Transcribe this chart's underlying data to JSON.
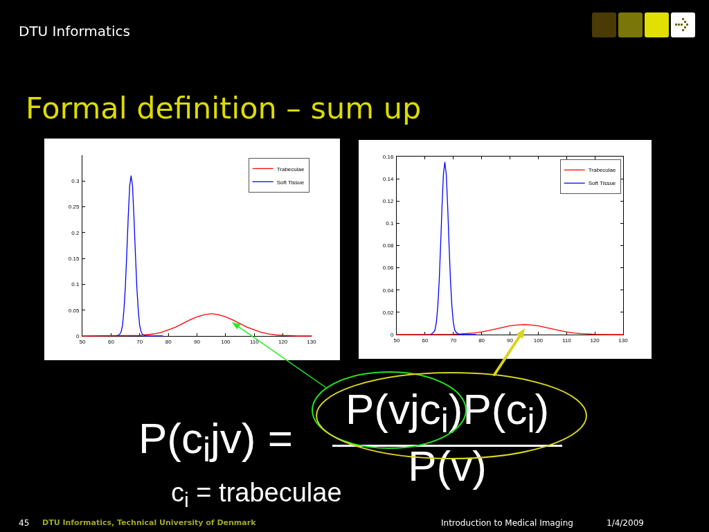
{
  "chart_data": [
    {
      "type": "other",
      "title": "Formal definition – sum up",
      "annotations": [
        "DTU Informatics",
        "P(c$_{i}$jv) =",
        "P(vjc$_{i}$)P(c$_{i}$)",
        "P(v)",
        "c$_{i}$ = trabeculae",
        "45",
        "DTU Informatics, Technical University of Denmark",
        "Introduction to Medical Imaging",
        "1/4/2009"
      ]
    },
    {
      "type": "line",
      "legend": "top right",
      "xlim": [
        50,
        130
      ],
      "xticks": [
        50,
        60,
        70,
        80,
        90,
        100,
        110,
        120,
        130
      ],
      "ylim": [
        0,
        0.35
      ],
      "yticks": [
        0,
        0.05,
        0.1,
        0.15,
        0.2,
        0.25,
        0.3
      ],
      "series": [
        {
          "name": "Trabeculae",
          "color": "#ff0000",
          "x": [
            50,
            70,
            75,
            77.5,
            80,
            82.5,
            85,
            87.5,
            90,
            92.5,
            95,
            97.5,
            100,
            102.5,
            105,
            107.5,
            110,
            112.5,
            115,
            117.5,
            120,
            125,
            130
          ],
          "values": [
            0,
            0.001,
            0.004,
            0.007,
            0.012,
            0.017,
            0.024,
            0.031,
            0.037,
            0.041,
            0.043,
            0.041,
            0.037,
            0.031,
            0.024,
            0.017,
            0.012,
            0.007,
            0.004,
            0.002,
            0.001,
            0,
            0
          ]
        },
        {
          "name": "Soft Tissue",
          "color": "#0000ff",
          "x": [
            62,
            63,
            63.5,
            64,
            64.5,
            65,
            65.5,
            66,
            66.5,
            67,
            67.5,
            68,
            68.5,
            69,
            69.5,
            70,
            70.5,
            71,
            72,
            78
          ],
          "values": [
            0,
            0.003,
            0.008,
            0.02,
            0.05,
            0.095,
            0.16,
            0.23,
            0.29,
            0.31,
            0.29,
            0.23,
            0.16,
            0.095,
            0.05,
            0.02,
            0.008,
            0.003,
            0,
            0
          ]
        }
      ]
    },
    {
      "type": "line",
      "legend": "top right",
      "xlim": [
        50,
        130
      ],
      "xticks": [
        50,
        60,
        70,
        80,
        90,
        100,
        110,
        120,
        130
      ],
      "ylim": [
        0,
        0.16
      ],
      "yticks": [
        0,
        0.02,
        0.04,
        0.06,
        0.08,
        0.1,
        0.12,
        0.14,
        0.16
      ],
      "series": [
        {
          "name": "Trabeculae",
          "color": "#ff0000",
          "x": [
            50,
            70,
            77.5,
            80,
            82.5,
            85,
            87.5,
            90,
            92.5,
            95,
            97.5,
            100,
            102.5,
            105,
            107.5,
            110,
            112.5,
            115,
            117.5,
            120,
            125,
            130
          ],
          "values": [
            0,
            0.0002,
            0.0015,
            0.0024,
            0.0036,
            0.005,
            0.0065,
            0.0078,
            0.0087,
            0.009,
            0.0087,
            0.0078,
            0.0065,
            0.005,
            0.0036,
            0.0024,
            0.0015,
            0.0009,
            0.0005,
            0.0002,
            0,
            0
          ]
        },
        {
          "name": "Soft Tissue",
          "color": "#0000ff",
          "x": [
            62,
            63,
            63.5,
            64,
            64.5,
            65,
            65.5,
            66,
            66.5,
            67,
            67.5,
            68,
            68.5,
            69,
            69.5,
            70,
            70.5,
            71,
            72,
            78
          ],
          "values": [
            0,
            0.002,
            0.004,
            0.011,
            0.025,
            0.048,
            0.08,
            0.115,
            0.144,
            0.155,
            0.144,
            0.115,
            0.08,
            0.048,
            0.025,
            0.011,
            0.004,
            0.002,
            0,
            0
          ]
        }
      ]
    }
  ]
}
